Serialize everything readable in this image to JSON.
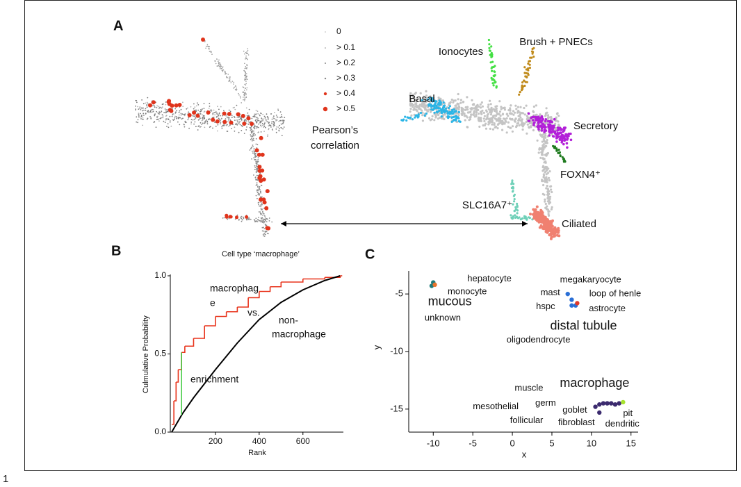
{
  "figure": {
    "number": "1",
    "panels": [
      "A",
      "B",
      "C"
    ]
  },
  "panel_a": {
    "legend": {
      "items": [
        "0",
        "> 0.1",
        "> 0.2",
        "> 0.3",
        "> 0.4",
        "> 0.5"
      ],
      "title": [
        "Pearson’s",
        "correlation"
      ]
    },
    "clusters": [
      "Ionocytes",
      "Brush + PNECs",
      "Basal",
      "Secretory",
      "FOXN4⁺",
      "SLC16A7⁺",
      "Ciliated"
    ]
  },
  "chart_data": [
    {
      "type": "line",
      "title": "Cell type ‘macrophage’",
      "xlabel": "Rank",
      "ylabel": "Culmulative Probability",
      "xlim": [
        0,
        785
      ],
      "ylim": [
        0,
        1
      ],
      "xticks": [
        200,
        400,
        600
      ],
      "yticks": [
        {
          "value": 0,
          "label": "0.0"
        },
        {
          "value": 0.5,
          "label": "0.5"
        },
        {
          "value": 1,
          "label": "1.0"
        }
      ],
      "series": [
        {
          "color": "#e8341c",
          "step": true,
          "x": [
            0,
            10,
            20,
            30,
            45,
            60,
            100,
            150,
            200,
            250,
            300,
            350,
            400,
            450,
            500,
            600,
            700,
            770
          ],
          "values": [
            0.05,
            0.2,
            0.32,
            0.4,
            0.51,
            0.55,
            0.6,
            0.68,
            0.74,
            0.77,
            0.8,
            0.86,
            0.9,
            0.93,
            0.96,
            0.98,
            0.99,
            1.0
          ]
        },
        {
          "color": "#000000",
          "x": [
            0,
            50,
            100,
            200,
            300,
            400,
            500,
            600,
            700,
            770
          ],
          "values": [
            0,
            0.12,
            0.22,
            0.4,
            0.57,
            0.72,
            0.83,
            0.91,
            0.97,
            1.0
          ]
        }
      ],
      "enrichment": {
        "color": "#3ec93e",
        "x": 45,
        "values": [
          0.11,
          0.51
        ]
      },
      "annotations": [
        "macrophag",
        "e",
        "vs.",
        "non-",
        "macrophage",
        "enrichment"
      ]
    },
    {
      "type": "scatter",
      "xlabel": "x",
      "ylabel": "y",
      "xlim": [
        -13.1,
        15.9
      ],
      "ylim": [
        -17,
        -3
      ],
      "xticks": [
        -10,
        -5,
        0,
        5,
        10,
        15
      ],
      "yticks": [
        -15,
        -10,
        -5
      ],
      "points": {
        "x": [
          -10.2,
          -10.0,
          -9.8,
          7.0,
          7.5,
          8.0,
          7.5,
          8.2,
          10.5,
          11.0,
          11.5,
          12.0,
          12.5,
          13.0,
          13.5,
          14.0,
          11.0
        ],
        "y": [
          -4.3,
          -4.0,
          -4.2,
          -5.0,
          -5.5,
          -6.0,
          -6.0,
          -5.8,
          -14.8,
          -14.6,
          -14.5,
          -14.5,
          -14.5,
          -14.6,
          -14.5,
          -14.4,
          -15.3
        ],
        "colors": [
          "#1f7a7a",
          "#1f7a7a",
          "#e8742c",
          "#2a6fd6",
          "#2a6fd6",
          "#2a6fd6",
          "#2a6fd6",
          "#e03a2a",
          "#3b2a6e",
          "#3b2a6e",
          "#3b2a6e",
          "#3b2a6e",
          "#3b2a6e",
          "#3b2a6e",
          "#3b2a6e",
          "#a6e22e",
          "#3b2a6e"
        ]
      },
      "labels": [
        {
          "text": "hepatocyte",
          "x": -2.9,
          "y": -3.7
        },
        {
          "text": "monocyte",
          "x": -5.7,
          "y": -4.8
        },
        {
          "text": "unknown",
          "x": -8.8,
          "y": -7.1
        },
        {
          "text": "megakaryocyte",
          "x": 9.9,
          "y": -3.8
        },
        {
          "text": "mast",
          "x": 4.8,
          "y": -4.9
        },
        {
          "text": "loop of henle",
          "x": 13.0,
          "y": -5.0
        },
        {
          "text": "hspc",
          "x": 4.2,
          "y": -6.1
        },
        {
          "text": "astrocyte",
          "x": 12.0,
          "y": -6.3
        },
        {
          "text": "oligodendrocyte",
          "x": 3.3,
          "y": -9.0
        },
        {
          "text": "muscle",
          "x": 2.1,
          "y": -13.2
        },
        {
          "text": "germ",
          "x": 4.2,
          "y": -14.5
        },
        {
          "text": "mesothelial",
          "x": -2.1,
          "y": -14.8
        },
        {
          "text": "goblet",
          "x": 7.9,
          "y": -15.1
        },
        {
          "text": "pit",
          "x": 14.6,
          "y": -15.4
        },
        {
          "text": "follicular",
          "x": 1.8,
          "y": -16.0
        },
        {
          "text": "fibroblast",
          "x": 8.1,
          "y": -16.2
        },
        {
          "text": "dendritic",
          "x": 13.9,
          "y": -16.3
        }
      ],
      "large_labels": [
        {
          "text": "mucous",
          "x": -7.9,
          "y": -5.7
        },
        {
          "text": "distal tubule",
          "x": 9.0,
          "y": -7.8
        },
        {
          "text": "macrophage",
          "x": 10.4,
          "y": -12.8
        }
      ]
    }
  ]
}
